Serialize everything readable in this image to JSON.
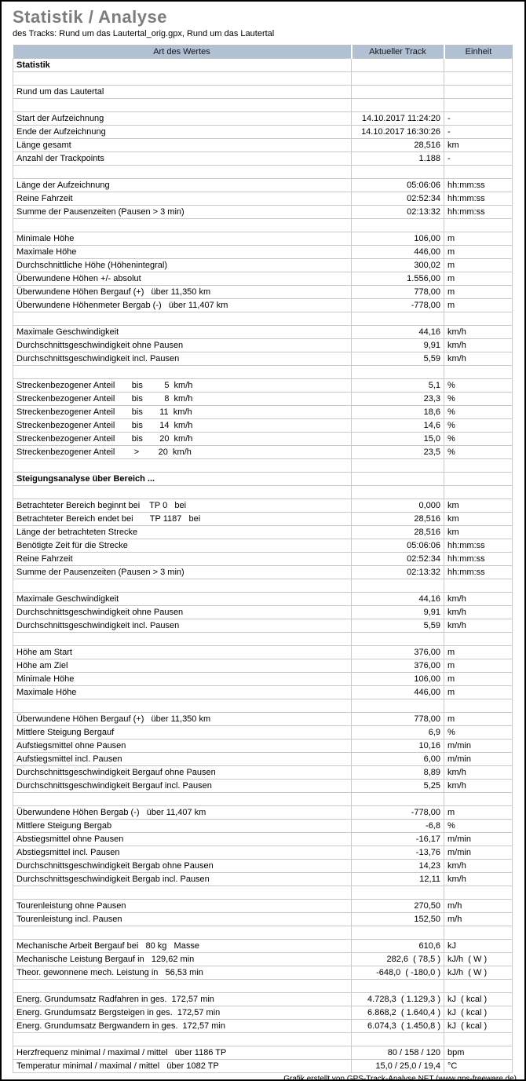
{
  "header": {
    "title": "Statistik / Analyse",
    "subtitle": "des Tracks: Rund um das Lautertal_orig.gpx, Rund um das Lautertal"
  },
  "colors": {
    "table_header_bg": "#b1c0d3",
    "grid_line": "#c9c9c9",
    "title_gray": "#7d7d7d",
    "frame_border": "#000000"
  },
  "table": {
    "columns": [
      "Art des Wertes",
      "Aktueller Track",
      "Einheit"
    ],
    "rows": [
      {
        "label": "Statistik",
        "value": "",
        "unit": "",
        "bold": true
      },
      {
        "label": "",
        "value": "",
        "unit": ""
      },
      {
        "label": "Rund um das Lautertal",
        "value": "",
        "unit": ""
      },
      {
        "label": "",
        "value": "",
        "unit": ""
      },
      {
        "label": "Start der Aufzeichnung",
        "value": "14.10.2017 11:24:20",
        "unit": "-"
      },
      {
        "label": "Ende der Aufzeichnung",
        "value": "14.10.2017 16:30:26",
        "unit": "-"
      },
      {
        "label": "Länge gesamt",
        "value": "28,516",
        "unit": "km"
      },
      {
        "label": "Anzahl der Trackpoints",
        "value": "1.188",
        "unit": "-"
      },
      {
        "label": "",
        "value": "",
        "unit": ""
      },
      {
        "label": "Länge der Aufzeichnung",
        "value": "05:06:06",
        "unit": "hh:mm:ss"
      },
      {
        "label": "Reine Fahrzeit",
        "value": "02:52:34",
        "unit": "hh:mm:ss"
      },
      {
        "label": "Summe der Pausenzeiten (Pausen > 3 min)",
        "value": "02:13:32",
        "unit": "hh:mm:ss"
      },
      {
        "label": "",
        "value": "",
        "unit": ""
      },
      {
        "label": "Minimale Höhe",
        "value": "106,00",
        "unit": "m"
      },
      {
        "label": "Maximale Höhe",
        "value": "446,00",
        "unit": "m"
      },
      {
        "label": "Durchschnittliche Höhe (Höhenintegral)",
        "value": "300,02",
        "unit": "m"
      },
      {
        "label": "Überwundene Höhen +/- absolut",
        "value": "1.556,00",
        "unit": "m"
      },
      {
        "label": "Überwundene Höhen Bergauf (+)   über 11,350 km",
        "value": "778,00",
        "unit": "m"
      },
      {
        "label": "Überwundene Höhenmeter Bergab (-)   über 11,407 km",
        "value": "-778,00",
        "unit": "m"
      },
      {
        "label": "",
        "value": "",
        "unit": ""
      },
      {
        "label": "Maximale Geschwindigkeit",
        "value": "44,16",
        "unit": "km/h"
      },
      {
        "label": "Durchschnittsgeschwindigkeit ohne Pausen",
        "value": "9,91",
        "unit": "km/h"
      },
      {
        "label": "Durchschnittsgeschwindigkeit incl. Pausen",
        "value": "5,59",
        "unit": "km/h"
      },
      {
        "label": "",
        "value": "",
        "unit": ""
      },
      {
        "label": "Streckenbezogener Anteil       bis         5  km/h",
        "value": "5,1",
        "unit": "%"
      },
      {
        "label": "Streckenbezogener Anteil       bis         8  km/h",
        "value": "23,3",
        "unit": "%"
      },
      {
        "label": "Streckenbezogener Anteil       bis       11  km/h",
        "value": "18,6",
        "unit": "%"
      },
      {
        "label": "Streckenbezogener Anteil       bis       14  km/h",
        "value": "14,6",
        "unit": "%"
      },
      {
        "label": "Streckenbezogener Anteil       bis       20  km/h",
        "value": "15,0",
        "unit": "%"
      },
      {
        "label": "Streckenbezogener Anteil        >        20  km/h",
        "value": "23,5",
        "unit": "%"
      },
      {
        "label": "",
        "value": "",
        "unit": ""
      },
      {
        "label": "Steigungsanalyse über Bereich ...",
        "value": "",
        "unit": "",
        "bold": true
      },
      {
        "label": "",
        "value": "",
        "unit": ""
      },
      {
        "label": "Betrachteter Bereich beginnt bei    TP 0   bei",
        "value": "0,000",
        "unit": "km"
      },
      {
        "label": "Betrachteter Bereich endet bei       TP 1187   bei",
        "value": "28,516",
        "unit": "km"
      },
      {
        "label": "Länge der betrachteten Strecke",
        "value": "28,516",
        "unit": "km"
      },
      {
        "label": "Benötigte Zeit für die Strecke",
        "value": "05:06:06",
        "unit": "hh:mm:ss"
      },
      {
        "label": "Reine Fahrzeit",
        "value": "02:52:34",
        "unit": "hh:mm:ss"
      },
      {
        "label": "Summe der Pausenzeiten (Pausen > 3 min)",
        "value": "02:13:32",
        "unit": "hh:mm:ss"
      },
      {
        "label": "",
        "value": "",
        "unit": ""
      },
      {
        "label": "Maximale Geschwindigkeit",
        "value": "44,16",
        "unit": "km/h"
      },
      {
        "label": "Durchschnittsgeschwindigkeit ohne Pausen",
        "value": "9,91",
        "unit": "km/h"
      },
      {
        "label": "Durchschnittsgeschwindigkeit incl. Pausen",
        "value": "5,59",
        "unit": "km/h"
      },
      {
        "label": "",
        "value": "",
        "unit": ""
      },
      {
        "label": "Höhe am Start",
        "value": "376,00",
        "unit": "m"
      },
      {
        "label": "Höhe am Ziel",
        "value": "376,00",
        "unit": "m"
      },
      {
        "label": "Minimale Höhe",
        "value": "106,00",
        "unit": "m"
      },
      {
        "label": "Maximale Höhe",
        "value": "446,00",
        "unit": "m"
      },
      {
        "label": "",
        "value": "",
        "unit": ""
      },
      {
        "label": "Überwundene Höhen Bergauf (+)   über 11,350 km",
        "value": "778,00",
        "unit": "m"
      },
      {
        "label": "Mittlere Steigung Bergauf",
        "value": "6,9",
        "unit": "%"
      },
      {
        "label": "Aufstiegsmittel ohne Pausen",
        "value": "10,16",
        "unit": "m/min"
      },
      {
        "label": "Aufstiegsmittel incl. Pausen",
        "value": "6,00",
        "unit": "m/min"
      },
      {
        "label": "Durchschnittsgeschwindigkeit Bergauf ohne Pausen",
        "value": "8,89",
        "unit": "km/h"
      },
      {
        "label": "Durchschnittsgeschwindigkeit Bergauf incl. Pausen",
        "value": "5,25",
        "unit": "km/h"
      },
      {
        "label": "",
        "value": "",
        "unit": ""
      },
      {
        "label": "Überwundene Höhen Bergab (-)   über 11,407 km",
        "value": "-778,00",
        "unit": "m"
      },
      {
        "label": "Mittlere Steigung Bergab",
        "value": "-6,8",
        "unit": "%"
      },
      {
        "label": "Abstiegsmittel ohne Pausen",
        "value": "-16,17",
        "unit": "m/min"
      },
      {
        "label": "Abstiegsmittel incl. Pausen",
        "value": "-13,76",
        "unit": "m/min"
      },
      {
        "label": "Durchschnittsgeschwindigkeit Bergab ohne Pausen",
        "value": "14,23",
        "unit": "km/h"
      },
      {
        "label": "Durchschnittsgeschwindigkeit Bergab incl. Pausen",
        "value": "12,11",
        "unit": "km/h"
      },
      {
        "label": "",
        "value": "",
        "unit": ""
      },
      {
        "label": "Tourenleistung ohne Pausen",
        "value": "270,50",
        "unit": "m/h"
      },
      {
        "label": "Tourenleistung incl. Pausen",
        "value": "152,50",
        "unit": "m/h"
      },
      {
        "label": "",
        "value": "",
        "unit": ""
      },
      {
        "label": "Mechanische Arbeit Bergauf bei   80 kg   Masse",
        "value": "610,6",
        "unit": "kJ"
      },
      {
        "label": "Mechanische Leistung Bergauf in   129,62 min",
        "value": "282,6  ( 78,5 )",
        "unit": "kJ/h  ( W )"
      },
      {
        "label": "Theor. gewonnene mech. Leistung in   56,53 min",
        "value": "-648,0  ( -180,0 )",
        "unit": "kJ/h  ( W )"
      },
      {
        "label": "",
        "value": "",
        "unit": ""
      },
      {
        "label": "Energ. Grundumsatz Radfahren in ges.  172,57 min",
        "value": "4.728,3  ( 1.129,3 )",
        "unit": "kJ  ( kcal )"
      },
      {
        "label": "Energ. Grundumsatz Bergsteigen in ges.  172,57 min",
        "value": "6.868,2  ( 1.640,4 )",
        "unit": "kJ  ( kcal )"
      },
      {
        "label": "Energ. Grundumsatz Bergwandern in ges.  172,57 min",
        "value": "6.074,3  ( 1.450,8 )",
        "unit": "kJ  ( kcal )"
      },
      {
        "label": "",
        "value": "",
        "unit": ""
      },
      {
        "label": "Herzfrequenz minimal / maximal / mittel   über 1186 TP",
        "value": "80 / 158 / 120",
        "unit": "bpm"
      },
      {
        "label": "Temperatur minimal / maximal / mittel   über 1082 TP",
        "value": "15,0 / 25,0 / 19,4",
        "unit": "°C"
      }
    ]
  },
  "footer": {
    "credit": "Grafik erstellt von GPS-Track-Analyse.NET (www.gps-freeware.de)"
  }
}
